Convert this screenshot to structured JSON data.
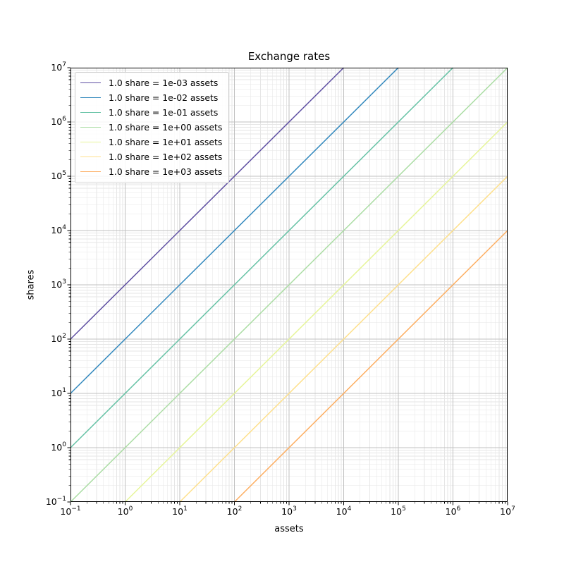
{
  "chart_data": {
    "type": "line",
    "title": "Exchange rates",
    "xlabel": "assets",
    "ylabel": "shares",
    "x_scale": "log",
    "y_scale": "log",
    "xlim": [
      0.1,
      10000000
    ],
    "ylim": [
      0.1,
      10000000
    ],
    "grid": "both",
    "legend_position": "upper left",
    "tick_base": "10",
    "x_tick_exponents": [
      "−1",
      "0",
      "1",
      "2",
      "3",
      "4",
      "5",
      "6",
      "7"
    ],
    "y_tick_exponents": [
      "7",
      "6",
      "5",
      "4",
      "3",
      "2",
      "1",
      "0",
      "−1"
    ],
    "style": {
      "background": "#ffffff",
      "spine_color": "#000000",
      "grid_major_color": "#c0c0c0",
      "grid_minor_color": "#e6e6e6",
      "tick_color": "#000000",
      "text_color": "#000000",
      "line_width": 1.5
    },
    "series": [
      {
        "label": "1.0 share = 1e-03 assets",
        "assets_per_share": 0.001,
        "color": "#5e4fa2",
        "points": [
          [
            0.1,
            100
          ],
          [
            10000,
            10000000
          ]
        ]
      },
      {
        "label": "1.0 share = 1e-02 assets",
        "assets_per_share": 0.01,
        "color": "#3288bd",
        "points": [
          [
            0.1,
            10
          ],
          [
            100000,
            10000000
          ]
        ]
      },
      {
        "label": "1.0 share = 1e-01 assets",
        "assets_per_share": 0.1,
        "color": "#66c2a5",
        "points": [
          [
            0.1,
            1
          ],
          [
            1000000,
            10000000
          ]
        ]
      },
      {
        "label": "1.0 share = 1e+00 assets",
        "assets_per_share": 1,
        "color": "#abdda4",
        "points": [
          [
            0.1,
            0.1
          ],
          [
            10000000,
            10000000
          ]
        ]
      },
      {
        "label": "1.0 share = 1e+01 assets",
        "assets_per_share": 10,
        "color": "#e6f598",
        "points": [
          [
            1,
            0.1
          ],
          [
            10000000,
            1000000
          ]
        ]
      },
      {
        "label": "1.0 share = 1e+02 assets",
        "assets_per_share": 100,
        "color": "#fee08b",
        "points": [
          [
            10,
            0.1
          ],
          [
            10000000,
            100000
          ]
        ]
      },
      {
        "label": "1.0 share = 1e+03 assets",
        "assets_per_share": 1000,
        "color": "#fdae61",
        "points": [
          [
            100,
            0.1
          ],
          [
            10000000,
            10000
          ]
        ]
      }
    ]
  }
}
